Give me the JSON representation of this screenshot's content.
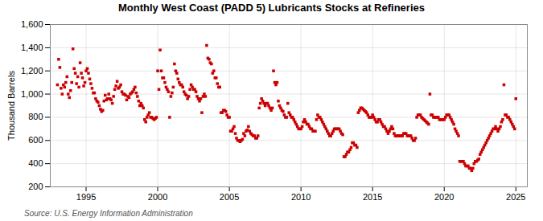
{
  "chart_data": {
    "type": "scatter",
    "title": "Monthly West Coast (PADD 5) Lubricants Stocks at Refineries",
    "ylabel": "Thousand Barrels",
    "caption": "Source: U.S. Energy Information Administration",
    "color": "#cc0000",
    "marker": "square",
    "grid": true,
    "xlim": [
      1992.5,
      2025.8
    ],
    "xticks": [
      1995,
      2000,
      2005,
      2010,
      2015,
      2020,
      2025
    ],
    "ylim": [
      200,
      1600
    ],
    "yticks": [
      200,
      400,
      600,
      800,
      {
        "value": 1000,
        "label": "1,000"
      },
      {
        "value": 1200,
        "label": "1,200"
      },
      {
        "value": 1400,
        "label": "1,400"
      },
      {
        "value": 1600,
        "label": "1,600"
      }
    ],
    "x": [
      1993.0,
      1993.083,
      1993.167,
      1993.25,
      1993.333,
      1993.417,
      1993.5,
      1993.583,
      1993.667,
      1993.75,
      1993.833,
      1993.917,
      1994.0,
      1994.083,
      1994.167,
      1994.25,
      1994.333,
      1994.417,
      1994.5,
      1994.583,
      1994.667,
      1994.75,
      1994.833,
      1994.917,
      1995.0,
      1995.083,
      1995.167,
      1995.25,
      1995.333,
      1995.417,
      1995.5,
      1995.583,
      1995.667,
      1995.75,
      1995.833,
      1995.917,
      1996.0,
      1996.083,
      1996.167,
      1996.25,
      1996.333,
      1996.417,
      1996.5,
      1996.583,
      1996.667,
      1996.75,
      1996.833,
      1996.917,
      1997.0,
      1997.083,
      1997.167,
      1997.25,
      1997.333,
      1997.417,
      1997.5,
      1997.583,
      1997.667,
      1997.75,
      1997.833,
      1997.917,
      1998.0,
      1998.083,
      1998.167,
      1998.25,
      1998.333,
      1998.417,
      1998.5,
      1998.583,
      1998.667,
      1998.75,
      1998.833,
      1998.917,
      1999.0,
      1999.083,
      1999.167,
      1999.25,
      1999.333,
      1999.417,
      1999.5,
      1999.583,
      1999.667,
      1999.75,
      1999.833,
      1999.917,
      2000.0,
      2000.083,
      2000.167,
      2000.25,
      2000.333,
      2000.417,
      2000.5,
      2000.583,
      2000.667,
      2000.75,
      2000.833,
      2000.917,
      2001.0,
      2001.083,
      2001.167,
      2001.25,
      2001.333,
      2001.417,
      2001.5,
      2001.583,
      2001.667,
      2001.75,
      2001.833,
      2001.917,
      2002.0,
      2002.083,
      2002.167,
      2002.25,
      2002.333,
      2002.417,
      2002.5,
      2002.583,
      2002.667,
      2002.75,
      2002.833,
      2002.917,
      2003.0,
      2003.083,
      2003.167,
      2003.25,
      2003.333,
      2003.417,
      2003.5,
      2003.583,
      2003.667,
      2003.75,
      2003.833,
      2003.917,
      2004.0,
      2004.083,
      2004.167,
      2004.25,
      2004.333,
      2004.417,
      2004.5,
      2004.583,
      2004.667,
      2004.75,
      2004.833,
      2004.917,
      2005.0,
      2005.083,
      2005.167,
      2005.25,
      2005.333,
      2005.417,
      2005.5,
      2005.583,
      2005.667,
      2005.75,
      2005.833,
      2005.917,
      2006.0,
      2006.083,
      2006.167,
      2006.25,
      2006.333,
      2006.417,
      2006.5,
      2006.583,
      2006.667,
      2006.75,
      2006.833,
      2006.917,
      2007.0,
      2007.083,
      2007.167,
      2007.25,
      2007.333,
      2007.417,
      2007.5,
      2007.583,
      2007.667,
      2007.75,
      2007.833,
      2007.917,
      2008.0,
      2008.083,
      2008.167,
      2008.25,
      2008.333,
      2008.417,
      2008.5,
      2008.583,
      2008.667,
      2008.75,
      2008.833,
      2008.917,
      2009.0,
      2009.083,
      2009.167,
      2009.25,
      2009.333,
      2009.417,
      2009.5,
      2009.583,
      2009.667,
      2009.75,
      2009.833,
      2009.917,
      2010.0,
      2010.083,
      2010.167,
      2010.25,
      2010.333,
      2010.417,
      2010.5,
      2010.583,
      2010.667,
      2010.75,
      2010.833,
      2010.917,
      2011.0,
      2011.083,
      2011.167,
      2011.25,
      2011.333,
      2011.417,
      2011.5,
      2011.583,
      2011.667,
      2011.75,
      2011.833,
      2011.917,
      2012.0,
      2012.083,
      2012.167,
      2012.25,
      2012.333,
      2012.417,
      2012.5,
      2012.583,
      2012.667,
      2012.75,
      2012.833,
      2012.917,
      2013.0,
      2013.083,
      2013.167,
      2013.25,
      2013.333,
      2013.417,
      2013.5,
      2013.583,
      2013.667,
      2013.75,
      2013.833,
      2013.917,
      2014.0,
      2014.083,
      2014.167,
      2014.25,
      2014.333,
      2014.417,
      2014.5,
      2014.583,
      2014.667,
      2014.75,
      2014.833,
      2014.917,
      2015.0,
      2015.083,
      2015.167,
      2015.25,
      2015.333,
      2015.417,
      2015.5,
      2015.583,
      2015.667,
      2015.75,
      2015.833,
      2015.917,
      2016.0,
      2016.083,
      2016.167,
      2016.25,
      2016.333,
      2016.417,
      2016.5,
      2016.583,
      2016.667,
      2016.75,
      2016.833,
      2016.917,
      2017.0,
      2017.083,
      2017.167,
      2017.25,
      2017.333,
      2017.417,
      2017.5,
      2017.583,
      2017.667,
      2017.75,
      2017.833,
      2017.917,
      2018.0,
      2018.083,
      2018.167,
      2018.25,
      2018.333,
      2018.417,
      2018.5,
      2018.583,
      2018.667,
      2018.75,
      2018.833,
      2018.917,
      2019.0,
      2019.083,
      2019.167,
      2019.25,
      2019.333,
      2019.417,
      2019.5,
      2019.583,
      2019.667,
      2019.75,
      2019.833,
      2019.917,
      2020.0,
      2020.083,
      2020.167,
      2020.25,
      2020.333,
      2020.417,
      2020.5,
      2020.583,
      2020.667,
      2020.75,
      2020.833,
      2020.917,
      2021.0,
      2021.083,
      2021.167,
      2021.25,
      2021.333,
      2021.417,
      2021.5,
      2021.583,
      2021.667,
      2021.75,
      2021.833,
      2021.917,
      2022.0,
      2022.083,
      2022.167,
      2022.25,
      2022.333,
      2022.417,
      2022.5,
      2022.583,
      2022.667,
      2022.75,
      2022.833,
      2022.917,
      2023.0,
      2023.083,
      2023.167,
      2023.25,
      2023.333,
      2023.417,
      2023.5,
      2023.583,
      2023.667,
      2023.75,
      2023.833,
      2023.917,
      2024.0,
      2024.083,
      2024.167,
      2024.25,
      2024.333,
      2024.417,
      2024.5,
      2024.583,
      2024.667,
      2024.75,
      2024.833,
      2024.917,
      2025.0
    ],
    "values": [
      1080,
      1300,
      1230,
      1050,
      1000,
      1080,
      1060,
      1100,
      1150,
      1000,
      970,
      1030,
      1100,
      1390,
      1220,
      1180,
      1090,
      1150,
      1060,
      1270,
      1180,
      1140,
      1070,
      1100,
      1200,
      1220,
      1180,
      1130,
      1090,
      1050,
      1010,
      1010,
      960,
      940,
      930,
      900,
      870,
      850,
      860,
      940,
      990,
      950,
      960,
      1000,
      960,
      950,
      920,
      980,
      1040,
      1070,
      1110,
      1050,
      1060,
      1080,
      1020,
      1000,
      1000,
      990,
      950,
      980,
      970,
      1000,
      1010,
      1020,
      1040,
      1060,
      1010,
      980,
      940,
      900,
      920,
      900,
      880,
      780,
      760,
      800,
      820,
      840,
      800,
      800,
      790,
      780,
      790,
      800,
      1200,
      1040,
      1380,
      1200,
      1140,
      1140,
      1100,
      1060,
      1040,
      1020,
      800,
      980,
      1010,
      1060,
      1260,
      1200,
      1180,
      1130,
      1100,
      1080,
      1080,
      1060,
      1020,
      1000,
      990,
      960,
      980,
      1040,
      1080,
      1060,
      1040,
      1040,
      1020,
      980,
      960,
      940,
      960,
      840,
      980,
      1000,
      980,
      1420,
      1310,
      1300,
      1270,
      1260,
      1180,
      1200,
      1140,
      1140,
      1090,
      1060,
      1060,
      840,
      840,
      860,
      860,
      850,
      820,
      800,
      800,
      680,
      680,
      700,
      720,
      660,
      620,
      600,
      600,
      590,
      600,
      610,
      660,
      640,
      680,
      690,
      720,
      680,
      660,
      650,
      640,
      640,
      620,
      620,
      640,
      880,
      920,
      960,
      940,
      920,
      900,
      920,
      920,
      900,
      880,
      860,
      880,
      1200,
      1100,
      1080,
      1100,
      940,
      900,
      880,
      860,
      850,
      820,
      800,
      800,
      920,
      840,
      820,
      800,
      800,
      780,
      760,
      740,
      720,
      700,
      700,
      700,
      720,
      760,
      780,
      760,
      740,
      740,
      720,
      700,
      700,
      680,
      680,
      680,
      780,
      820,
      800,
      800,
      780,
      760,
      740,
      720,
      700,
      680,
      660,
      640,
      640,
      660,
      680,
      700,
      700,
      700,
      700,
      700,
      680,
      660,
      650,
      460,
      460,
      480,
      500,
      500,
      520,
      540,
      580,
      580,
      560,
      560,
      540,
      840,
      860,
      880,
      880,
      870,
      860,
      850,
      840,
      820,
      800,
      800,
      800,
      820,
      800,
      780,
      760,
      760,
      780,
      780,
      760,
      740,
      720,
      720,
      700,
      680,
      660,
      680,
      700,
      720,
      700,
      660,
      640,
      640,
      640,
      640,
      640,
      640,
      640,
      660,
      660,
      660,
      640,
      640,
      640,
      640,
      620,
      600,
      600,
      620,
      800,
      820,
      820,
      820,
      800,
      790,
      780,
      770,
      760,
      750,
      740,
      1000,
      820,
      820,
      800,
      800,
      800,
      800,
      800,
      780,
      780,
      780,
      780,
      780,
      800,
      820,
      820,
      820,
      800,
      780,
      760,
      740,
      700,
      680,
      660,
      640,
      420,
      420,
      420,
      420,
      400,
      380,
      380,
      380,
      360,
      360,
      340,
      360,
      400,
      420,
      420,
      430,
      440,
      480,
      500,
      520,
      540,
      560,
      580,
      600,
      620,
      640,
      660,
      680,
      700,
      700,
      720,
      700,
      680,
      700,
      720,
      760,
      780,
      1080,
      820,
      820,
      800,
      800,
      780,
      760,
      740,
      720,
      700,
      960
    ]
  }
}
